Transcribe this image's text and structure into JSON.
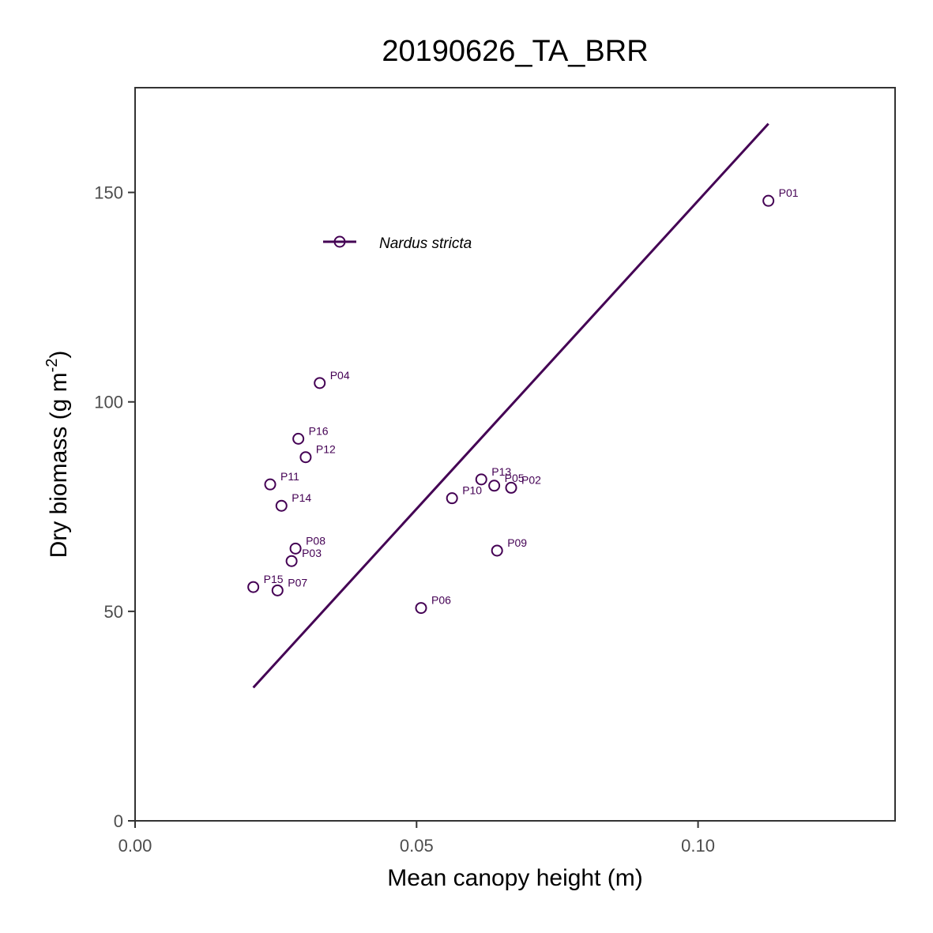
{
  "chart_data": {
    "type": "scatter",
    "title": "20190626_TA_BRR",
    "xlabel": "Mean canopy height (m)",
    "ylabel": {
      "prefix": "Dry biomass (g m",
      "superscript": "-2",
      "suffix": ")"
    },
    "xlim": [
      0,
      0.135
    ],
    "ylim": [
      0,
      175
    ],
    "xticks": [
      0.0,
      0.05,
      0.1
    ],
    "xtick_labels": [
      "0.00",
      "0.05",
      "0.10"
    ],
    "yticks": [
      0,
      50,
      100,
      150
    ],
    "ytick_labels": [
      "0",
      "50",
      "100",
      "150"
    ],
    "grid": false,
    "legend_position": "top-left",
    "series": [
      {
        "name": "Nardus stricta",
        "color": "#440154",
        "points": [
          {
            "label": "P01",
            "x": 0.1125,
            "y": 148.0
          },
          {
            "label": "P02",
            "x": 0.0668,
            "y": 79.5
          },
          {
            "label": "P03",
            "x": 0.0278,
            "y": 62.0
          },
          {
            "label": "P04",
            "x": 0.0328,
            "y": 104.5
          },
          {
            "label": "P05",
            "x": 0.0638,
            "y": 80.0
          },
          {
            "label": "P06",
            "x": 0.0508,
            "y": 50.8
          },
          {
            "label": "P07",
            "x": 0.0253,
            "y": 55.0
          },
          {
            "label": "P08",
            "x": 0.0285,
            "y": 65.0
          },
          {
            "label": "P09",
            "x": 0.0643,
            "y": 64.5
          },
          {
            "label": "P10",
            "x": 0.0563,
            "y": 77.0
          },
          {
            "label": "P11",
            "x": 0.024,
            "y": 80.3
          },
          {
            "label": "P12",
            "x": 0.0303,
            "y": 86.8
          },
          {
            "label": "P13",
            "x": 0.0615,
            "y": 81.5
          },
          {
            "label": "P14",
            "x": 0.026,
            "y": 75.2
          },
          {
            "label": "P15",
            "x": 0.021,
            "y": 55.8
          },
          {
            "label": "P16",
            "x": 0.029,
            "y": 91.2
          }
        ],
        "fit_line": {
          "x": [
            0.021,
            0.1125
          ],
          "y": [
            31.8,
            166.4
          ]
        }
      }
    ]
  }
}
